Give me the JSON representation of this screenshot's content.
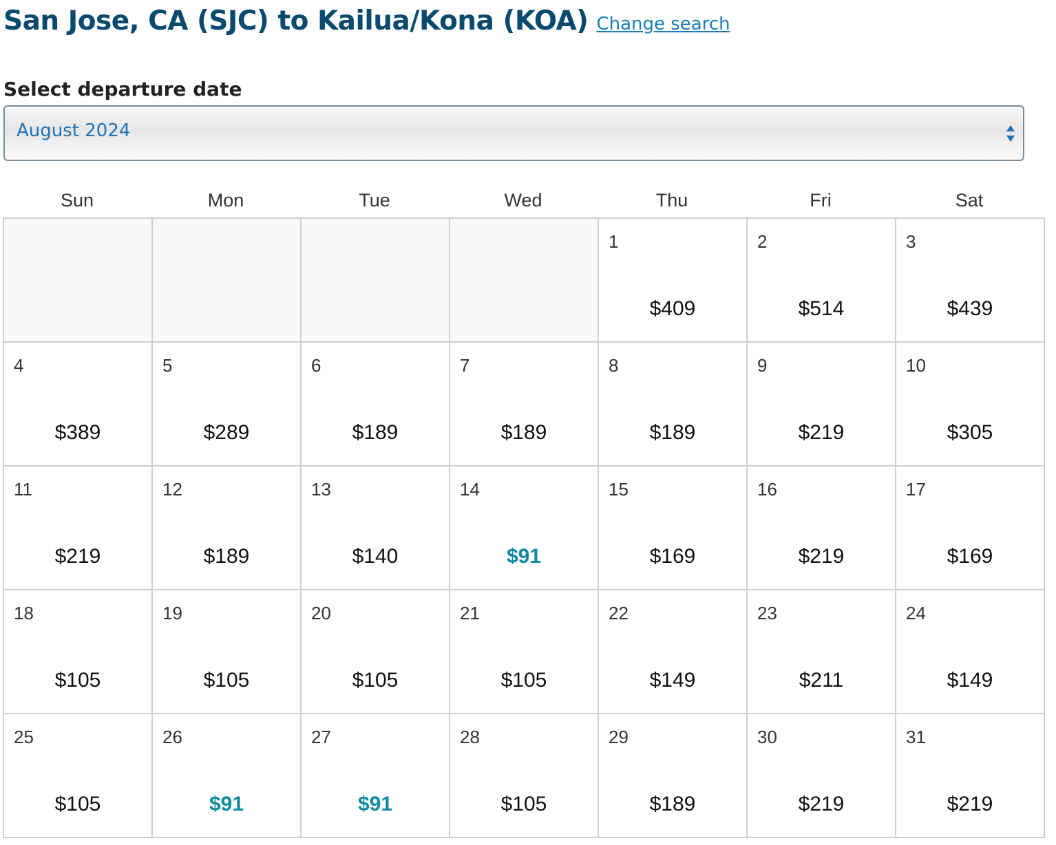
{
  "header": {
    "route_title": "San Jose, CA (SJC) to Kailua/Kona (KOA)",
    "change_search_label": "Change search"
  },
  "month_selector": {
    "label": "Select departure date",
    "selected": "August 2024"
  },
  "weekdays": [
    "Sun",
    "Mon",
    "Tue",
    "Wed",
    "Thu",
    "Fri",
    "Sat"
  ],
  "colors": {
    "title": "#0a4a6e",
    "link": "#1a7fb5",
    "select_text": "#2173b4",
    "lowest_fare": "#0e8aa0"
  },
  "calendar": {
    "leading_empty_days": 4,
    "days": [
      {
        "day": "1",
        "price": "$409",
        "lowest": false
      },
      {
        "day": "2",
        "price": "$514",
        "lowest": false
      },
      {
        "day": "3",
        "price": "$439",
        "lowest": false
      },
      {
        "day": "4",
        "price": "$389",
        "lowest": false
      },
      {
        "day": "5",
        "price": "$289",
        "lowest": false
      },
      {
        "day": "6",
        "price": "$189",
        "lowest": false
      },
      {
        "day": "7",
        "price": "$189",
        "lowest": false
      },
      {
        "day": "8",
        "price": "$189",
        "lowest": false
      },
      {
        "day": "9",
        "price": "$219",
        "lowest": false
      },
      {
        "day": "10",
        "price": "$305",
        "lowest": false
      },
      {
        "day": "11",
        "price": "$219",
        "lowest": false
      },
      {
        "day": "12",
        "price": "$189",
        "lowest": false
      },
      {
        "day": "13",
        "price": "$140",
        "lowest": false
      },
      {
        "day": "14",
        "price": "$91",
        "lowest": true
      },
      {
        "day": "15",
        "price": "$169",
        "lowest": false
      },
      {
        "day": "16",
        "price": "$219",
        "lowest": false
      },
      {
        "day": "17",
        "price": "$169",
        "lowest": false
      },
      {
        "day": "18",
        "price": "$105",
        "lowest": false
      },
      {
        "day": "19",
        "price": "$105",
        "lowest": false
      },
      {
        "day": "20",
        "price": "$105",
        "lowest": false
      },
      {
        "day": "21",
        "price": "$105",
        "lowest": false
      },
      {
        "day": "22",
        "price": "$149",
        "lowest": false
      },
      {
        "day": "23",
        "price": "$211",
        "lowest": false
      },
      {
        "day": "24",
        "price": "$149",
        "lowest": false
      },
      {
        "day": "25",
        "price": "$105",
        "lowest": false
      },
      {
        "day": "26",
        "price": "$91",
        "lowest": true
      },
      {
        "day": "27",
        "price": "$91",
        "lowest": true
      },
      {
        "day": "28",
        "price": "$105",
        "lowest": false
      },
      {
        "day": "29",
        "price": "$189",
        "lowest": false
      },
      {
        "day": "30",
        "price": "$219",
        "lowest": false
      },
      {
        "day": "31",
        "price": "$219",
        "lowest": false
      }
    ]
  }
}
